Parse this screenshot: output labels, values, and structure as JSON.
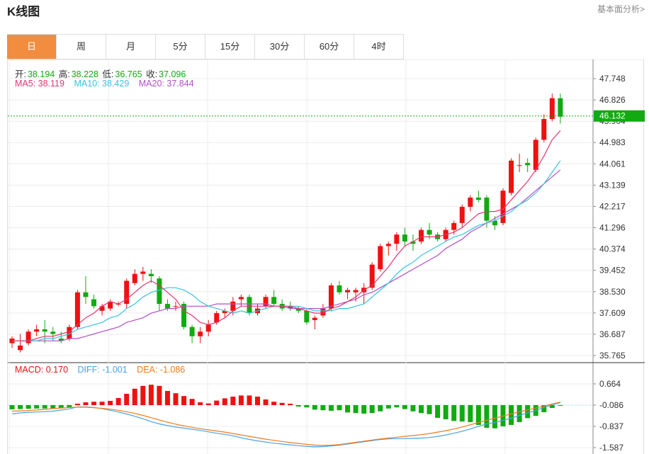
{
  "header": {
    "title": "K线图",
    "link": "基本面分析>"
  },
  "tabs": [
    "日",
    "周",
    "月",
    "5分",
    "15分",
    "30分",
    "60分",
    "4时"
  ],
  "active_tab": 0,
  "ohlc_info": {
    "open_label": "开:",
    "open": "38.194",
    "high_label": "高:",
    "high": "38.228",
    "low_label": "低:",
    "low": "36.765",
    "close_label": "收:",
    "close": "37.096"
  },
  "ma_info": {
    "ma5": "MA5: 38.119",
    "ma10": "MA10: 38.429",
    "ma20": "MA20: 37.844"
  },
  "macd_info": {
    "macd": "MACD: 0.170",
    "diff": "DIFF: -1.001",
    "dea": "DEA: -1.086"
  },
  "current_price": "46.132",
  "colors": {
    "up": "#ee1111",
    "down": "#11aa11",
    "ma5": "#e8336f",
    "ma10": "#35c4dd",
    "ma20": "#b44fc9",
    "diff": "#4aa3e8",
    "dea": "#f07a1b",
    "tab_active": "#f28c3f"
  },
  "chart_data": [
    {
      "type": "candlestick",
      "y_ticks": [
        "47.748",
        "46.826",
        "45.904",
        "44.983",
        "44.061",
        "43.139",
        "42.217",
        "41.296",
        "40.374",
        "39.452",
        "38.530",
        "37.609",
        "36.687",
        "35.765"
      ],
      "ylim": [
        35.765,
        47.748
      ],
      "grid": true,
      "candles": [
        [
          36.3,
          36.6,
          36.1,
          36.5
        ],
        [
          36.0,
          36.7,
          35.9,
          36.2
        ],
        [
          36.3,
          36.9,
          36.2,
          36.8
        ],
        [
          36.8,
          37.1,
          36.6,
          36.9
        ],
        [
          36.9,
          37.3,
          36.3,
          36.8
        ],
        [
          36.8,
          37.0,
          36.4,
          36.7
        ],
        [
          36.5,
          36.8,
          36.3,
          36.4
        ],
        [
          36.5,
          37.1,
          36.4,
          37.0
        ],
        [
          37.0,
          38.6,
          36.9,
          38.5
        ],
        [
          38.5,
          39.2,
          38.0,
          38.3
        ],
        [
          38.2,
          38.4,
          37.8,
          37.9
        ],
        [
          37.7,
          38.0,
          37.5,
          37.9
        ],
        [
          37.8,
          38.2,
          37.7,
          38.1
        ],
        [
          38.0,
          38.1,
          37.9,
          38.0
        ],
        [
          38.0,
          39.1,
          37.8,
          39.0
        ],
        [
          38.9,
          39.5,
          38.8,
          39.3
        ],
        [
          39.3,
          39.6,
          39.0,
          39.4
        ],
        [
          39.3,
          39.5,
          38.9,
          39.2
        ],
        [
          39.1,
          39.2,
          37.7,
          38.0
        ],
        [
          38.0,
          38.2,
          37.7,
          37.8
        ],
        [
          37.9,
          38.1,
          37.7,
          37.9
        ],
        [
          38.0,
          38.1,
          36.9,
          37.0
        ],
        [
          37.0,
          37.1,
          36.3,
          36.6
        ],
        [
          36.6,
          37.0,
          36.3,
          36.8
        ],
        [
          36.8,
          37.3,
          36.6,
          37.1
        ],
        [
          37.2,
          37.7,
          37.1,
          37.6
        ],
        [
          37.6,
          37.8,
          37.4,
          37.7
        ],
        [
          37.7,
          38.3,
          37.5,
          38.1
        ],
        [
          38.2,
          38.4,
          37.9,
          38.3
        ],
        [
          38.3,
          38.4,
          37.5,
          37.6
        ],
        [
          37.6,
          38.0,
          37.5,
          37.8
        ],
        [
          37.9,
          38.4,
          37.8,
          38.3
        ],
        [
          38.3,
          38.6,
          37.9,
          38.0
        ],
        [
          38.0,
          38.2,
          37.7,
          37.8
        ],
        [
          37.9,
          38.1,
          37.7,
          37.8
        ],
        [
          37.8,
          37.9,
          37.6,
          37.7
        ],
        [
          37.7,
          37.8,
          37.1,
          37.2
        ],
        [
          37.3,
          37.5,
          36.9,
          37.4
        ],
        [
          37.5,
          38.0,
          37.4,
          37.8
        ],
        [
          37.8,
          38.9,
          37.7,
          38.8
        ],
        [
          38.8,
          39.0,
          38.4,
          38.5
        ],
        [
          38.5,
          38.7,
          38.2,
          38.6
        ],
        [
          38.5,
          38.7,
          38.1,
          38.6
        ],
        [
          38.5,
          38.9,
          38.0,
          38.7
        ],
        [
          38.7,
          39.8,
          38.6,
          39.7
        ],
        [
          39.5,
          40.6,
          39.4,
          40.5
        ],
        [
          40.5,
          40.7,
          40.1,
          40.6
        ],
        [
          40.6,
          41.1,
          40.3,
          41.0
        ],
        [
          41.0,
          41.3,
          40.5,
          40.7
        ],
        [
          40.7,
          41.0,
          40.3,
          40.6
        ],
        [
          40.7,
          41.3,
          40.6,
          41.2
        ],
        [
          41.2,
          41.5,
          40.8,
          41.0
        ],
        [
          41.0,
          41.1,
          40.7,
          40.8
        ],
        [
          40.8,
          41.3,
          40.7,
          41.2
        ],
        [
          41.2,
          41.6,
          41.0,
          41.5
        ],
        [
          41.5,
          42.3,
          41.3,
          42.2
        ],
        [
          42.2,
          42.7,
          42.0,
          42.6
        ],
        [
          42.6,
          42.9,
          42.4,
          42.5
        ],
        [
          42.6,
          42.7,
          41.3,
          41.6
        ],
        [
          41.6,
          41.8,
          41.2,
          41.4
        ],
        [
          41.5,
          43.0,
          41.4,
          42.9
        ],
        [
          42.8,
          44.3,
          42.7,
          44.2
        ],
        [
          44.0,
          44.5,
          43.7,
          44.0
        ],
        [
          44.1,
          44.3,
          43.7,
          44.0
        ],
        [
          43.8,
          45.2,
          43.7,
          45.1
        ],
        [
          45.1,
          46.2,
          45.0,
          46.0
        ],
        [
          46.0,
          47.1,
          45.9,
          46.9
        ],
        [
          46.9,
          47.1,
          45.8,
          46.1
        ]
      ],
      "ma5": [
        36.4,
        36.4,
        36.4,
        36.5,
        36.6,
        36.6,
        36.7,
        36.8,
        37.1,
        37.4,
        37.6,
        37.9,
        38.1,
        38.0,
        38.2,
        38.5,
        38.8,
        39.0,
        38.8,
        38.5,
        38.2,
        37.7,
        37.5,
        37.2,
        37.1,
        37.2,
        37.4,
        37.7,
        37.9,
        37.9,
        37.9,
        37.9,
        37.9,
        37.9,
        37.9,
        37.8,
        37.7,
        37.6,
        37.6,
        37.8,
        37.9,
        38.1,
        38.3,
        38.6,
        38.8,
        39.2,
        39.6,
        40.1,
        40.5,
        40.7,
        40.9,
        40.9,
        40.9,
        41.0,
        41.1,
        41.3,
        41.6,
        41.9,
        42.0,
        42.0,
        42.1,
        42.5,
        42.9,
        43.3,
        43.8,
        44.4,
        45.1,
        45.5
      ],
      "ma10": [
        36.4,
        36.4,
        36.4,
        36.4,
        36.5,
        36.5,
        36.6,
        36.7,
        36.9,
        37.0,
        37.1,
        37.2,
        37.4,
        37.5,
        37.8,
        38.0,
        38.3,
        38.5,
        38.6,
        38.7,
        38.7,
        38.6,
        38.4,
        38.1,
        37.9,
        37.8,
        37.7,
        37.6,
        37.7,
        37.6,
        37.7,
        37.8,
        37.9,
        37.9,
        37.9,
        37.9,
        37.8,
        37.7,
        37.7,
        37.7,
        37.8,
        37.8,
        37.9,
        38.0,
        38.3,
        38.6,
        38.9,
        39.3,
        39.6,
        39.8,
        40.1,
        40.3,
        40.5,
        40.7,
        40.9,
        41.0,
        41.2,
        41.4,
        41.5,
        41.6,
        41.8,
        42.0,
        42.3,
        42.5,
        42.8,
        43.2,
        43.7,
        44.2
      ],
      "ma20": [
        36.4,
        36.4,
        36.4,
        36.4,
        36.4,
        36.4,
        36.4,
        36.5,
        36.5,
        36.6,
        36.7,
        36.8,
        36.9,
        37.0,
        37.2,
        37.3,
        37.4,
        37.6,
        37.7,
        37.8,
        37.8,
        37.9,
        37.9,
        37.9,
        37.9,
        38.0,
        38.0,
        38.0,
        38.0,
        38.0,
        38.0,
        38.0,
        37.9,
        37.9,
        37.8,
        37.8,
        37.8,
        37.8,
        37.8,
        37.9,
        38.0,
        38.1,
        38.2,
        38.4,
        38.5,
        38.7,
        38.9,
        39.1,
        39.3,
        39.5,
        39.7,
        39.9,
        40.1,
        40.4,
        40.6,
        40.8,
        41.1,
        41.3,
        41.5,
        41.7,
        41.9,
        42.1,
        42.3,
        42.6,
        42.9,
        43.2,
        43.5,
        43.8
      ]
    },
    {
      "type": "macd",
      "y_ticks": [
        "0.664",
        "-0.086",
        "-0.837",
        "-1.587"
      ],
      "ylim": [
        -1.587,
        0.664
      ],
      "macd": [
        -0.15,
        -0.14,
        -0.13,
        -0.12,
        -0.12,
        -0.11,
        -0.1,
        -0.08,
        0.05,
        0.1,
        0.12,
        0.12,
        0.15,
        0.25,
        0.4,
        0.58,
        0.68,
        0.72,
        0.68,
        0.5,
        0.42,
        0.32,
        0.22,
        0.1,
        0.06,
        0.16,
        0.24,
        0.3,
        0.34,
        0.34,
        0.3,
        0.2,
        0.12,
        0.08,
        0.05,
        -0.05,
        -0.08,
        -0.16,
        -0.18,
        -0.2,
        -0.18,
        -0.26,
        -0.28,
        -0.3,
        -0.28,
        -0.22,
        -0.12,
        -0.08,
        -0.14,
        -0.22,
        -0.28,
        -0.32,
        -0.45,
        -0.5,
        -0.56,
        -0.58,
        -0.6,
        -0.7,
        -0.8,
        -0.82,
        -0.75,
        -0.7,
        -0.6,
        -0.46,
        -0.38,
        -0.25,
        -0.1,
        -0.02
      ],
      "diff": [
        -0.4,
        -0.36,
        -0.34,
        -0.33,
        -0.32,
        -0.3,
        -0.26,
        -0.22,
        -0.15,
        -0.15,
        -0.17,
        -0.21,
        -0.27,
        -0.33,
        -0.4,
        -0.48,
        -0.57,
        -0.67,
        -0.75,
        -0.81,
        -0.86,
        -0.9,
        -0.94,
        -0.98,
        -1.03,
        -1.08,
        -1.12,
        -1.17,
        -1.24,
        -1.3,
        -1.35,
        -1.39,
        -1.43,
        -1.46,
        -1.49,
        -1.52,
        -1.54,
        -1.56,
        -1.55,
        -1.53,
        -1.5,
        -1.46,
        -1.42,
        -1.38,
        -1.34,
        -1.3,
        -1.28,
        -1.27,
        -1.27,
        -1.26,
        -1.25,
        -1.23,
        -1.19,
        -1.14,
        -1.08,
        -1.01,
        -0.93,
        -0.84,
        -0.75,
        -0.7,
        -0.63,
        -0.55,
        -0.45,
        -0.36,
        -0.27,
        -0.17,
        -0.07,
        0.0
      ],
      "dea": [
        -0.3,
        -0.29,
        -0.28,
        -0.26,
        -0.24,
        -0.21,
        -0.19,
        -0.17,
        -0.16,
        -0.16,
        -0.18,
        -0.2,
        -0.23,
        -0.27,
        -0.32,
        -0.38,
        -0.45,
        -0.53,
        -0.61,
        -0.69,
        -0.76,
        -0.82,
        -0.87,
        -0.92,
        -0.96,
        -1.0,
        -1.04,
        -1.09,
        -1.14,
        -1.19,
        -1.24,
        -1.29,
        -1.33,
        -1.37,
        -1.41,
        -1.44,
        -1.47,
        -1.5,
        -1.51,
        -1.5,
        -1.48,
        -1.44,
        -1.4,
        -1.36,
        -1.32,
        -1.28,
        -1.25,
        -1.22,
        -1.19,
        -1.16,
        -1.13,
        -1.09,
        -1.04,
        -0.99,
        -0.93,
        -0.86,
        -0.78,
        -0.7,
        -0.62,
        -0.55,
        -0.47,
        -0.4,
        -0.32,
        -0.26,
        -0.19,
        -0.12,
        -0.05,
        0.02
      ]
    }
  ]
}
